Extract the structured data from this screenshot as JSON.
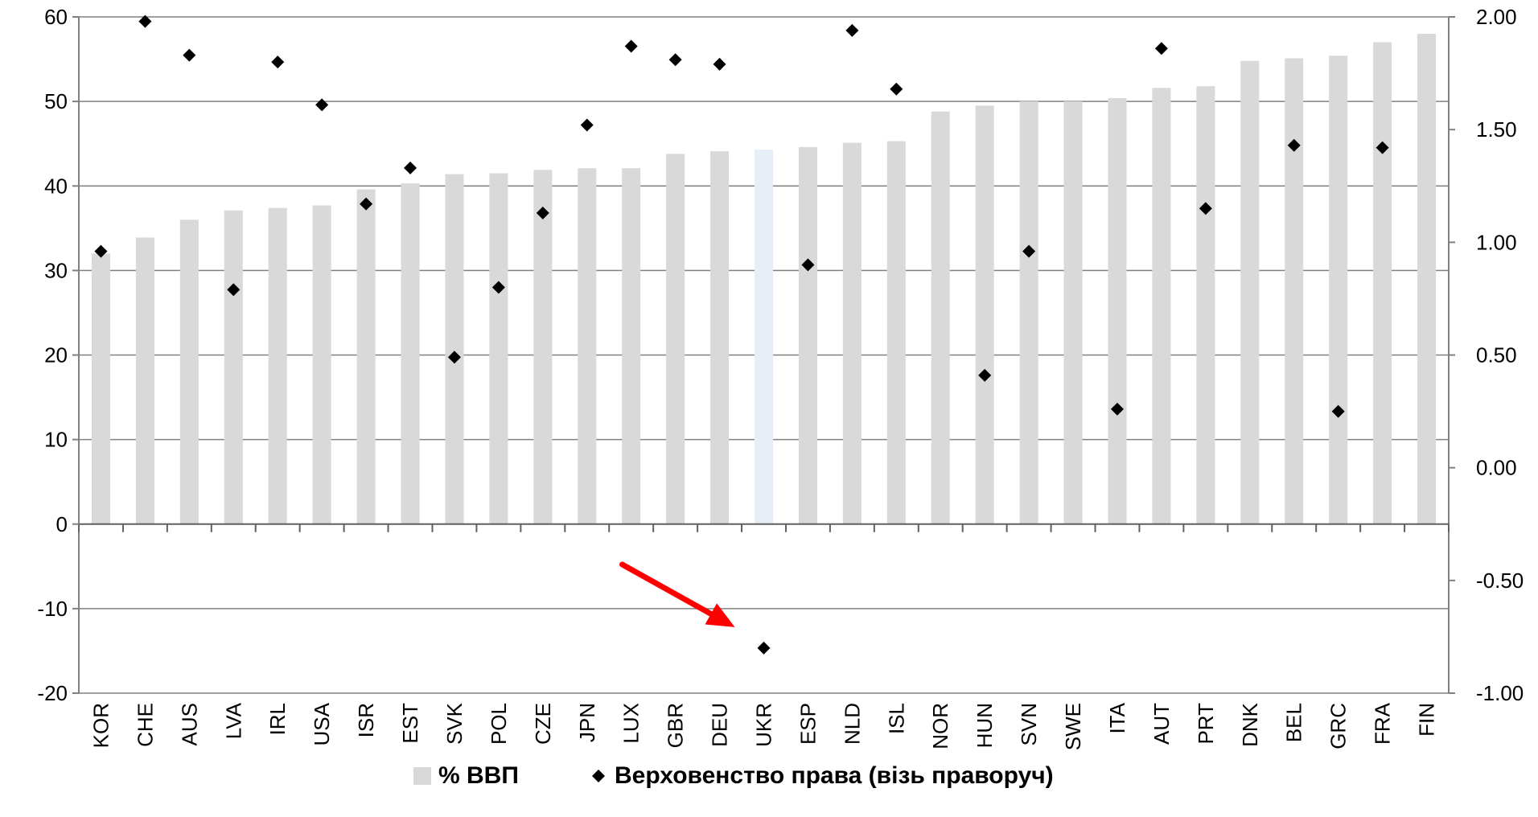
{
  "chart_data": {
    "type": "bar",
    "categories": [
      "KOR",
      "CHE",
      "AUS",
      "LVA",
      "IRL",
      "USA",
      "ISR",
      "EST",
      "SVK",
      "POL",
      "CZE",
      "JPN",
      "LUX",
      "GBR",
      "DEU",
      "UKR",
      "ESP",
      "NLD",
      "ISL",
      "NOR",
      "HUN",
      "SVN",
      "SWE",
      "ITA",
      "AUT",
      "PRT",
      "DNK",
      "BEL",
      "GRC",
      "FRA",
      "FIN"
    ],
    "series": [
      {
        "name": "% ВВП",
        "axis": "left",
        "kind": "bar",
        "color": "#d9d9d9",
        "highlight": {
          "UKR": "#e8eef7"
        },
        "values": [
          32,
          33.9,
          36,
          37.1,
          37.4,
          37.7,
          39.6,
          40.3,
          41.4,
          41.5,
          41.9,
          42.1,
          42.1,
          43.8,
          44.1,
          44.3,
          44.6,
          45.1,
          45.3,
          48.8,
          49.5,
          50,
          50,
          50.4,
          51.6,
          51.8,
          54.8,
          55.1,
          55.4,
          57,
          58
        ]
      },
      {
        "name": "Верховенство права (візь праворуч)",
        "axis": "right",
        "kind": "scatter",
        "marker": "diamond",
        "color": "#000000",
        "values": [
          0.96,
          1.98,
          1.83,
          0.79,
          1.8,
          1.61,
          1.17,
          1.33,
          0.49,
          0.8,
          1.13,
          1.52,
          1.87,
          1.81,
          1.79,
          -0.8,
          0.9,
          1.94,
          1.68,
          null,
          0.41,
          0.96,
          null,
          0.26,
          1.86,
          1.15,
          null,
          1.43,
          0.25,
          1.42,
          null
        ]
      }
    ],
    "left_axis": {
      "min": -20,
      "max": 60,
      "ticks": [
        "60",
        "50",
        "40",
        "30",
        "20",
        "10",
        "0",
        "-10",
        "-20"
      ]
    },
    "right_axis": {
      "min": -1,
      "max": 2,
      "ticks": [
        "2.00",
        "1.50",
        "1.00",
        "0.50",
        "0.00",
        "-0.50",
        "-1.00"
      ]
    },
    "grid": true,
    "legend_position": "bottom",
    "annotation": {
      "type": "arrow",
      "color": "#ff0000",
      "target": "UKR"
    }
  }
}
